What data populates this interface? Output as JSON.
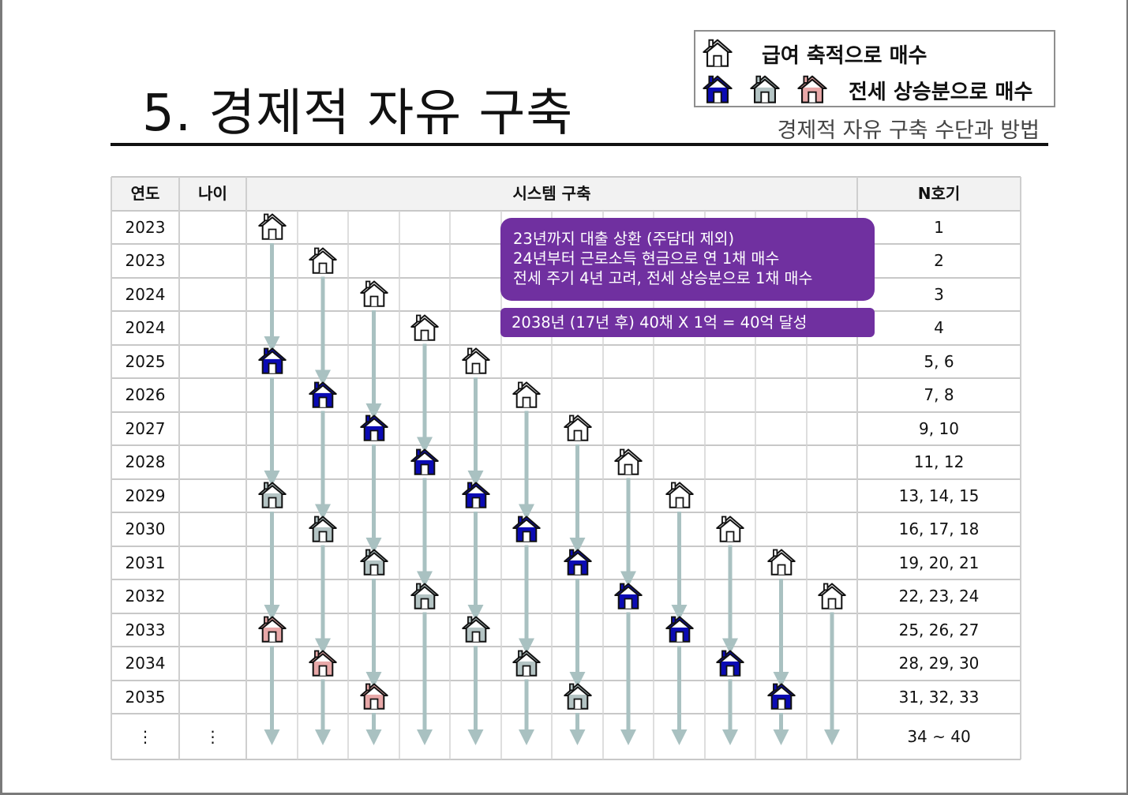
{
  "title": "5. 경제적 자유 구축",
  "subtitle": "경제적 자유 구축 수단과 방법",
  "legend": {
    "item1_label": "급여 축적으로 매수",
    "item1_icon": "house-outline-icon",
    "item2_label": "전세 상승분으로 매수",
    "item2_icons": [
      "house-blue-icon",
      "house-gray-icon",
      "house-pink-icon"
    ]
  },
  "colors": {
    "blue": "#0a0ab4",
    "gray": "#b4c4c4",
    "pink": "#e8a8a8",
    "outline": "#ffffff",
    "arrow": "#a9c1c1",
    "callout": "#7030a0"
  },
  "table": {
    "headers": {
      "year": "연도",
      "age": "나이",
      "system": "시스템 구축",
      "count": "N호기"
    },
    "rows": [
      {
        "year": "2023",
        "age": "",
        "count": "1"
      },
      {
        "year": "2023",
        "age": "",
        "count": "2"
      },
      {
        "year": "2024",
        "age": "",
        "count": "3"
      },
      {
        "year": "2024",
        "age": "",
        "count": "4"
      },
      {
        "year": "2025",
        "age": "",
        "count": "5, 6"
      },
      {
        "year": "2026",
        "age": "",
        "count": "7, 8"
      },
      {
        "year": "2027",
        "age": "",
        "count": "9, 10"
      },
      {
        "year": "2028",
        "age": "",
        "count": "11, 12"
      },
      {
        "year": "2029",
        "age": "",
        "count": "13, 14, 15"
      },
      {
        "year": "2030",
        "age": "",
        "count": "16, 17, 18"
      },
      {
        "year": "2031",
        "age": "",
        "count": "19, 20, 21"
      },
      {
        "year": "2032",
        "age": "",
        "count": "22, 23, 24"
      },
      {
        "year": "2033",
        "age": "",
        "count": "25, 26, 27"
      },
      {
        "year": "2034",
        "age": "",
        "count": "28, 29, 30"
      },
      {
        "year": "2035",
        "age": "",
        "count": "31, 32, 33"
      },
      {
        "year": "⋮",
        "age": "⋮",
        "count": "34 ~ 40"
      }
    ],
    "houses": [
      {
        "row": 0,
        "col": 0,
        "type": "outline"
      },
      {
        "row": 1,
        "col": 1,
        "type": "outline"
      },
      {
        "row": 2,
        "col": 2,
        "type": "outline"
      },
      {
        "row": 3,
        "col": 3,
        "type": "outline"
      },
      {
        "row": 4,
        "col": 0,
        "type": "blue"
      },
      {
        "row": 4,
        "col": 4,
        "type": "outline"
      },
      {
        "row": 5,
        "col": 1,
        "type": "blue"
      },
      {
        "row": 5,
        "col": 5,
        "type": "outline"
      },
      {
        "row": 6,
        "col": 2,
        "type": "blue"
      },
      {
        "row": 6,
        "col": 6,
        "type": "outline"
      },
      {
        "row": 7,
        "col": 3,
        "type": "blue"
      },
      {
        "row": 7,
        "col": 7,
        "type": "outline"
      },
      {
        "row": 8,
        "col": 0,
        "type": "gray"
      },
      {
        "row": 8,
        "col": 4,
        "type": "blue"
      },
      {
        "row": 8,
        "col": 8,
        "type": "outline"
      },
      {
        "row": 9,
        "col": 1,
        "type": "gray"
      },
      {
        "row": 9,
        "col": 5,
        "type": "blue"
      },
      {
        "row": 9,
        "col": 9,
        "type": "outline"
      },
      {
        "row": 10,
        "col": 2,
        "type": "gray"
      },
      {
        "row": 10,
        "col": 6,
        "type": "blue"
      },
      {
        "row": 10,
        "col": 10,
        "type": "outline"
      },
      {
        "row": 11,
        "col": 3,
        "type": "gray"
      },
      {
        "row": 11,
        "col": 7,
        "type": "blue"
      },
      {
        "row": 11,
        "col": 11,
        "type": "outline"
      },
      {
        "row": 12,
        "col": 0,
        "type": "pink"
      },
      {
        "row": 12,
        "col": 4,
        "type": "gray"
      },
      {
        "row": 12,
        "col": 8,
        "type": "blue"
      },
      {
        "row": 13,
        "col": 1,
        "type": "pink"
      },
      {
        "row": 13,
        "col": 5,
        "type": "gray"
      },
      {
        "row": 13,
        "col": 9,
        "type": "blue"
      },
      {
        "row": 14,
        "col": 2,
        "type": "pink"
      },
      {
        "row": 14,
        "col": 6,
        "type": "gray"
      },
      {
        "row": 14,
        "col": 10,
        "type": "blue"
      }
    ]
  },
  "callout_main": {
    "line1": "23년까지 대출 상환 (주담대 제외)",
    "line2": "24년부터 근로소득 현금으로 연 1채 매수",
    "line3": "전세 주기 4년 고려, 전세 상승분으로 1채 매수"
  },
  "callout_goal": "2038년 (17년  후) 40채 X 1억 = 40억 달성"
}
